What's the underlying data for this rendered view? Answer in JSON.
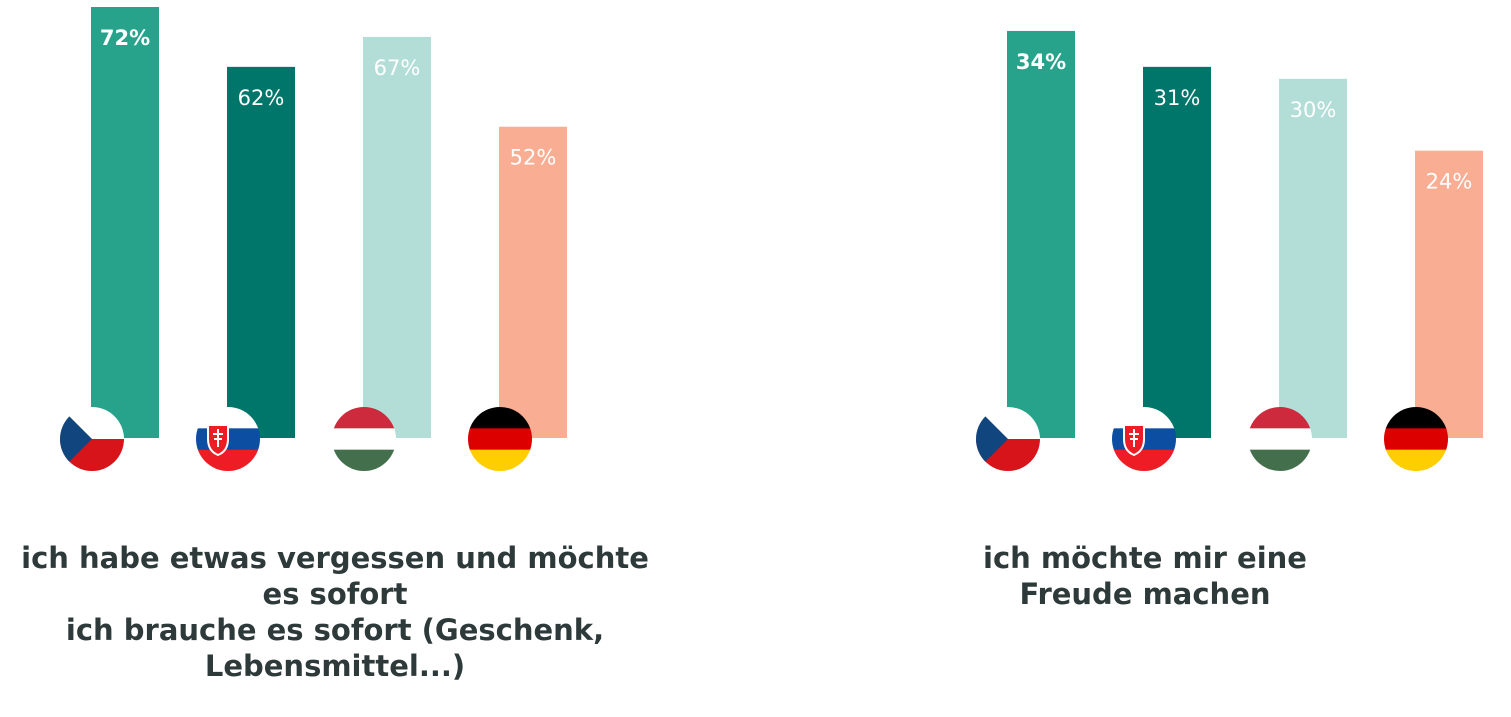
{
  "chart_data": [
    {
      "type": "bar",
      "title": "ich habe etwas vergessen und möchte es sofort\nich brauche es sofort (Geschenk, Lebensmittel...)",
      "categories": [
        null,
        null,
        null,
        null
      ],
      "values": [
        72,
        62,
        67,
        52
      ],
      "value_labels": [
        "72%",
        "62%",
        "67%",
        "52%"
      ],
      "colors": [
        "#27a28b",
        "#00756a",
        "#b3ded8",
        "#f9ad93"
      ],
      "ylim": [
        0,
        72
      ]
    },
    {
      "type": "bar",
      "title": "ich möchte mir eine Freude machen",
      "categories": [
        null,
        null,
        null,
        null
      ],
      "values": [
        34,
        31,
        30,
        24
      ],
      "value_labels": [
        "34%",
        "31%",
        "30%",
        "24%"
      ],
      "colors": [
        "#27a28b",
        "#00756a",
        "#b3ded8",
        "#f9ad93"
      ],
      "ylim": [
        0,
        36
      ]
    }
  ]
}
